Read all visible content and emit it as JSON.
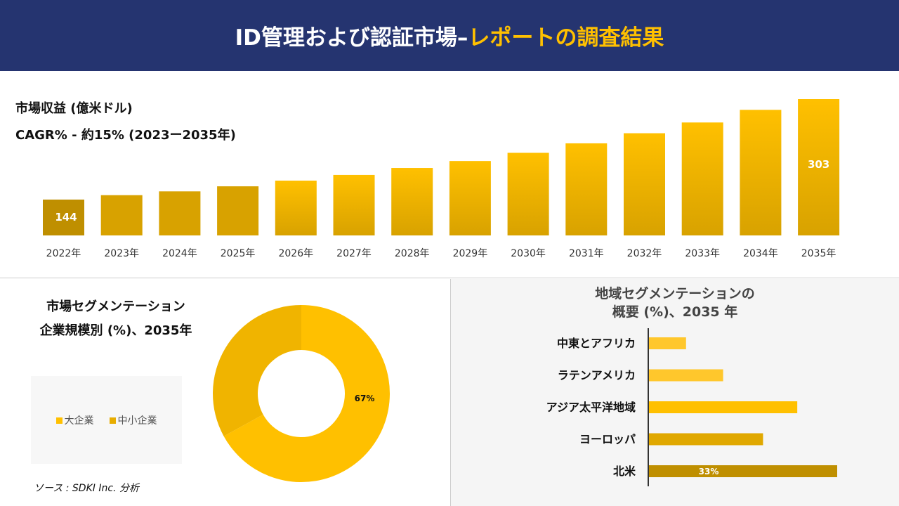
{
  "header": {
    "title_main": "ID管理および認証市場–",
    "title_accent": "レポートの調査結果"
  },
  "revenue": {
    "title": "市場収益 (億米ドル)",
    "cagr": "CAGR% - 約15% (2023ー2035年)"
  },
  "colors": {
    "header_bg": "#253470",
    "accent": "#ffc000",
    "bar_dark": "#bf8f00",
    "bar_light": "#ffc000"
  },
  "chart_data": [
    {
      "type": "bar",
      "categories": [
        "2022年",
        "2023年",
        "2024年",
        "2025年",
        "2026年",
        "2027年",
        "2028年",
        "2029年",
        "2030年",
        "2031年",
        "2032年",
        "2033年",
        "2034年",
        "2035年"
      ],
      "values": [
        144,
        151,
        157,
        165,
        174,
        183,
        194,
        205,
        218,
        233,
        249,
        266,
        286,
        303
      ],
      "data_labels": {
        "0": "144",
        "13": "303"
      },
      "ylabel": "",
      "xlabel": ""
    },
    {
      "type": "pie",
      "title": "市場セグメンテーション 企業規模別 (%)、2035年",
      "labels": [
        "大企業",
        "中小企業"
      ],
      "values": [
        67,
        33
      ],
      "data_labels": [
        "67%",
        ""
      ],
      "colors": [
        "#ffc000",
        "#f0b400"
      ],
      "legend": "left"
    },
    {
      "type": "bar",
      "orientation": "horizontal",
      "title": "地域セグメンテーションの 概要 (%)、2035 年",
      "categories": [
        "中東とアフリカ",
        "ラテンアメリカ",
        "アジア太平洋地域",
        "ヨーロッパ",
        "北米"
      ],
      "values": [
        6.5,
        13,
        26,
        20,
        33
      ],
      "data_labels": [
        "",
        "",
        "",
        "",
        "33%"
      ],
      "colors": [
        "#ffc72c",
        "#ffc72c",
        "#ffc000",
        "#e0a800",
        "#bf8f00"
      ]
    }
  ],
  "segment": {
    "title1": "市場セグメンテーション",
    "title2": "企業規模別 (%)、2035年",
    "legend": [
      "大企業",
      "中小企業"
    ]
  },
  "region": {
    "title1": "地域セグメンテーションの",
    "title2": "概要 (%)、2035 年"
  },
  "source": "ソース : SDKI Inc. 分析"
}
